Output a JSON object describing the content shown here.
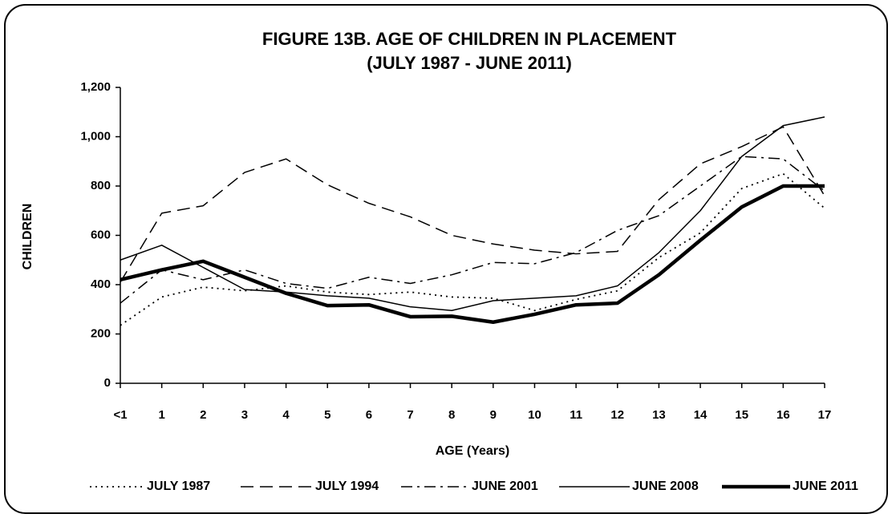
{
  "chart_data": {
    "type": "line",
    "title": "FIGURE 13B. AGE OF CHILDREN IN PLACEMENT",
    "subtitle": "(JULY 1987 - JUNE 2011)",
    "x_label": "AGE (Years)",
    "y_label": "CHILDREN",
    "categories": [
      "<1",
      "1",
      "2",
      "3",
      "4",
      "5",
      "6",
      "7",
      "8",
      "9",
      "10",
      "11",
      "12",
      "13",
      "14",
      "15",
      "16",
      "17"
    ],
    "ylim": [
      0,
      1200
    ],
    "yticks": [
      0,
      200,
      400,
      600,
      800,
      {
        "value": 1000,
        "label": "1,000"
      },
      {
        "value": 1200,
        "label": "1,200"
      }
    ],
    "grid": false,
    "legend": "bottom",
    "series": [
      {
        "name": "JULY 1987",
        "color": "#000000",
        "line_style": "dotted",
        "values": [
          235,
          350,
          390,
          375,
          395,
          370,
          360,
          370,
          350,
          345,
          295,
          340,
          375,
          510,
          610,
          790,
          850,
          710
        ]
      },
      {
        "name": "JULY 1994",
        "color": "#000000",
        "line_style": "dashed",
        "values": [
          410,
          690,
          720,
          855,
          910,
          805,
          730,
          675,
          600,
          565,
          540,
          525,
          535,
          745,
          890,
          960,
          1040,
          760
        ]
      },
      {
        "name": "JUNE 2001",
        "color": "#000000",
        "line_style": "dash-dot",
        "values": [
          325,
          460,
          420,
          460,
          405,
          385,
          430,
          405,
          440,
          490,
          485,
          530,
          620,
          680,
          800,
          920,
          910,
          780
        ]
      },
      {
        "name": "JUNE 2008",
        "color": "#000000",
        "line_style": "solid",
        "values": [
          500,
          560,
          470,
          380,
          370,
          355,
          345,
          310,
          295,
          335,
          345,
          355,
          395,
          530,
          700,
          920,
          1045,
          1080
        ]
      },
      {
        "name": "JUNE 2011",
        "color": "#000000",
        "line_style": "thick",
        "values": [
          420,
          460,
          495,
          430,
          365,
          315,
          318,
          270,
          272,
          248,
          280,
          318,
          325,
          440,
          580,
          715,
          800,
          800
        ]
      }
    ]
  }
}
